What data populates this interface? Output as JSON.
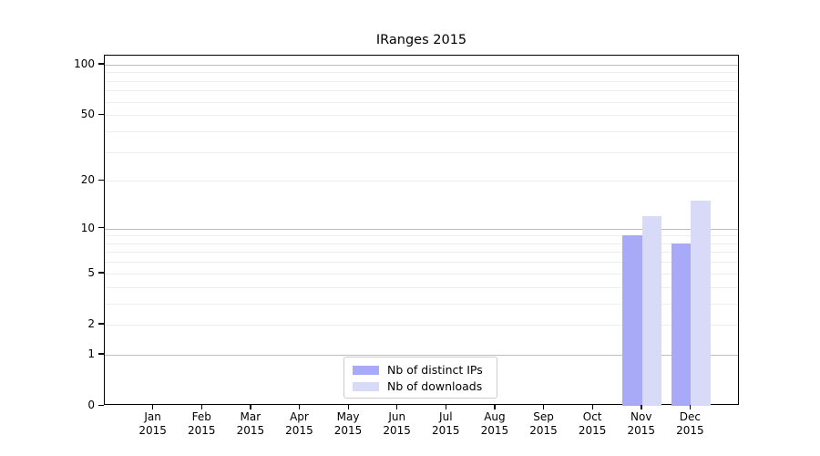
{
  "chart_data": {
    "type": "bar",
    "title": "IRanges 2015",
    "yscale": "log1p",
    "ylim": [
      0,
      113
    ],
    "grid": true,
    "categories": [
      "Jan",
      "Feb",
      "Mar",
      "Apr",
      "May",
      "Jun",
      "Jul",
      "Aug",
      "Sep",
      "Oct",
      "Nov",
      "Dec"
    ],
    "category_year": "2015",
    "y_labeled_ticks": [
      0,
      1,
      2,
      5,
      10,
      20,
      50,
      100
    ],
    "y_major_gridlines": [
      1,
      10,
      100
    ],
    "y_minor_gridlines": [
      2,
      3,
      4,
      5,
      6,
      7,
      8,
      9,
      20,
      30,
      40,
      50,
      60,
      70,
      80,
      90
    ],
    "series": [
      {
        "name": "Nb of distinct IPs",
        "slug": "distinct-ips",
        "color": "#a9aaf7",
        "values": [
          0,
          0,
          0,
          0,
          0,
          0,
          0,
          0,
          0,
          0,
          9,
          8
        ]
      },
      {
        "name": "Nb of downloads",
        "slug": "downloads",
        "color": "#d9daf7",
        "values": [
          0,
          0,
          0,
          0,
          0,
          0,
          0,
          0,
          0,
          0,
          12,
          15
        ]
      }
    ],
    "legend": {
      "position": "bottom-center-inside",
      "entries": [
        "Nb of distinct IPs",
        "Nb of downloads"
      ]
    },
    "colors": {
      "axis": "#000000",
      "grid_major": "#bdbdbd",
      "grid_minor": "#ededed",
      "background": "#ffffff"
    }
  }
}
